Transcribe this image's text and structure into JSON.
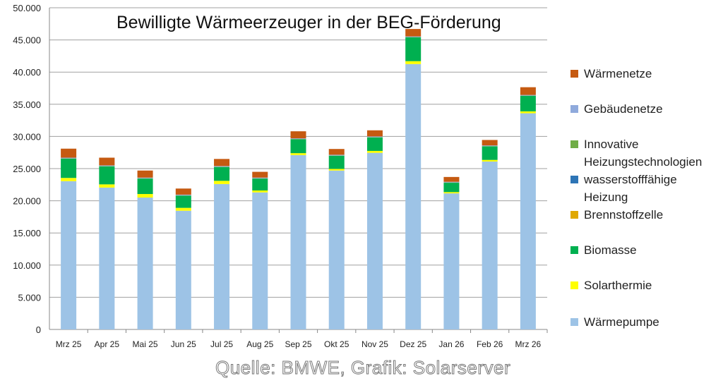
{
  "chart_data": {
    "type": "bar",
    "stacked": true,
    "title": "Bewilligte Wärmeerzeuger in der BEG-Förderung",
    "categories": [
      "Mrz 25",
      "Apr 25",
      "Mai 25",
      "Jun 25",
      "Jul 25",
      "Aug 25",
      "Sep 25",
      "Okt 25",
      "Nov 25",
      "Dez 25",
      "Jan 26",
      "Feb 26",
      "Mrz 26"
    ],
    "ylim": [
      0,
      50000
    ],
    "yticks": [
      "0",
      "5.000",
      "10.000",
      "15.000",
      "20.000",
      "25.000",
      "30.000",
      "35.000",
      "40.000",
      "45.000",
      "50.000"
    ],
    "grid": true,
    "legend_position": "right",
    "series": [
      {
        "name": "Wärmepumpe",
        "color": "#9dc3e6",
        "values": [
          23050,
          22050,
          20500,
          18450,
          22600,
          21300,
          27100,
          24700,
          27450,
          41250,
          21150,
          26100,
          33600
        ]
      },
      {
        "name": "Solarthermie",
        "color": "#ffff00",
        "values": [
          500,
          500,
          550,
          450,
          500,
          300,
          300,
          250,
          300,
          450,
          200,
          250,
          300
        ]
      },
      {
        "name": "Biomasse",
        "color": "#00b050",
        "values": [
          3000,
          2800,
          2400,
          1900,
          2150,
          1850,
          2150,
          2050,
          2100,
          3700,
          1450,
          2100,
          2400
        ]
      },
      {
        "name": "Brennstoffzelle",
        "color": "#e0a800",
        "values": [
          10,
          10,
          10,
          10,
          10,
          10,
          10,
          10,
          10,
          10,
          10,
          10,
          10
        ]
      },
      {
        "name": "wasserstofffähige Heizung",
        "color": "#2e75b6",
        "values": [
          10,
          10,
          10,
          10,
          10,
          10,
          10,
          10,
          10,
          10,
          10,
          10,
          10
        ]
      },
      {
        "name": "Innovative Heizungstechnologien",
        "color": "#70ad47",
        "values": [
          30,
          30,
          30,
          30,
          30,
          30,
          30,
          30,
          30,
          30,
          30,
          30,
          30
        ]
      },
      {
        "name": "Gebäudenetze",
        "color": "#8faadc",
        "values": [
          100,
          100,
          100,
          100,
          100,
          100,
          100,
          100,
          100,
          100,
          100,
          100,
          100
        ]
      },
      {
        "name": "Wärmenetze",
        "color": "#c55a11",
        "values": [
          1400,
          1200,
          1100,
          950,
          1100,
          900,
          1100,
          900,
          950,
          1150,
          750,
          850,
          1200
        ]
      }
    ]
  },
  "legend_order": [
    "Wärmenetze",
    "Gebäudenetze",
    "Innovative Heizungstechnologien",
    "wasserstofffähige Heizung",
    "Brennstoffzelle",
    "Biomasse",
    "Solarthermie",
    "Wärmepumpe"
  ],
  "source": "Quelle: BMWE, Grafik: Solarserver"
}
